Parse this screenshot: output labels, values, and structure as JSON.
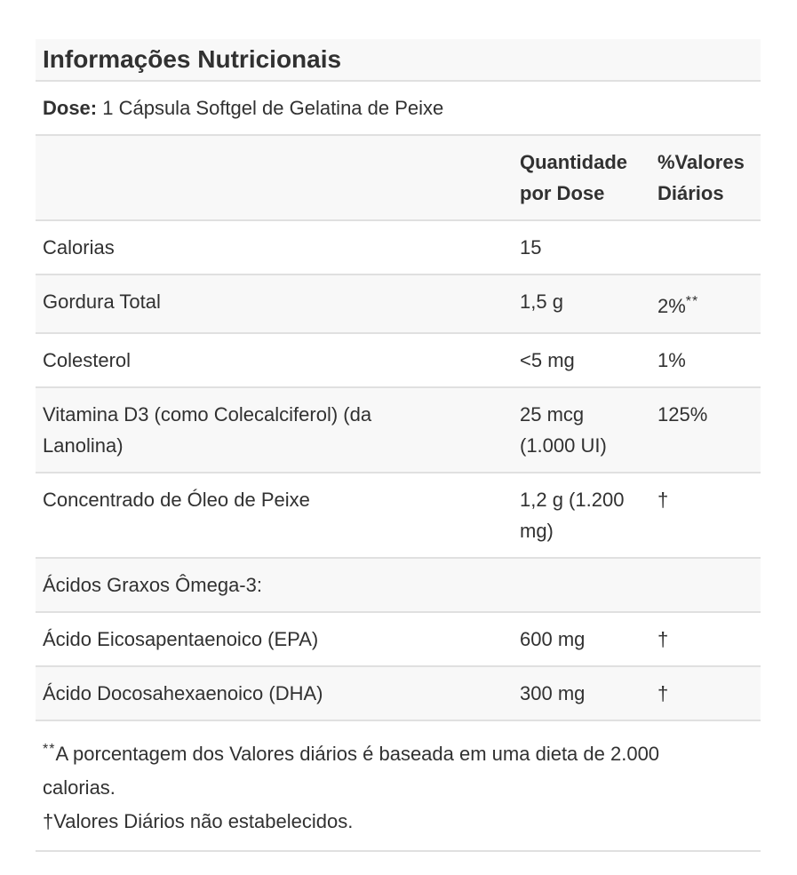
{
  "title": "Informações Nutricionais",
  "dose": {
    "label": "Dose:",
    "value": " 1 Cápsula Softgel de Gelatina de Peixe"
  },
  "table": {
    "columns": {
      "amount": "Quantidade\npor Dose",
      "dv": "%Valores\nDiários"
    },
    "rows": [
      {
        "name": "Calorias",
        "amount": "15",
        "dv": ""
      },
      {
        "name": "Gordura Total",
        "amount": "1,5 g",
        "dv": "2%",
        "dv_sup": "**"
      },
      {
        "name": "Colesterol",
        "amount": "<5 mg",
        "dv": "1%"
      },
      {
        "name": "Vitamina D3 (como Colecalciferol) (da\nLanolina)",
        "amount": "25 mcg\n(1.000 UI)",
        "dv": "125%"
      },
      {
        "name": "Concentrado de Óleo de Peixe",
        "amount": "1,2 g (1.200\nmg)",
        "dv": "†"
      }
    ],
    "section_header": "Ácidos Graxos Ômega-3:",
    "section_rows": [
      {
        "name": "Ácido Eicosapentaenoico (EPA)",
        "amount": "600 mg",
        "dv": "†"
      },
      {
        "name": "Ácido Docosahexaenoico (DHA)",
        "amount": "300 mg",
        "dv": "†"
      }
    ]
  },
  "footnotes": [
    {
      "prefix": "**",
      "text": "A porcentagem dos Valores diários é baseada em uma dieta de 2.000\ncalorias."
    },
    {
      "prefix": "",
      "text": "†Valores Diários não estabelecidos."
    }
  ],
  "colors": {
    "stripe": "#f8f8f8",
    "border": "#e0e0e0",
    "text": "#313131"
  }
}
